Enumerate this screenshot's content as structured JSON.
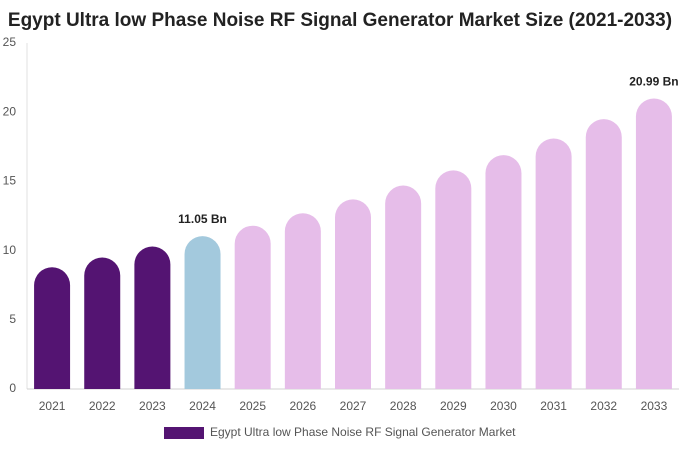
{
  "chart_data": {
    "type": "bar",
    "title": "Egypt Ultra low Phase Noise RF Signal Generator Market Size (2021-2033)",
    "categories": [
      "2021",
      "2022",
      "2023",
      "2024",
      "2025",
      "2026",
      "2027",
      "2028",
      "2029",
      "2030",
      "2031",
      "2032",
      "2033"
    ],
    "series": [
      {
        "name": "Egypt Ultra low Phase Noise RF Signal Generator Market",
        "color": "#541472",
        "values": [
          8.8,
          9.5,
          10.3,
          11.05,
          11.8,
          12.7,
          13.7,
          14.7,
          15.8,
          16.9,
          18.1,
          19.5,
          20.99
        ],
        "value_labels": [
          null,
          null,
          null,
          "11.05 Bn",
          null,
          null,
          null,
          null,
          null,
          null,
          null,
          null,
          "20.99 Bn"
        ],
        "colors": [
          "#541472",
          "#541472",
          "#541472",
          "#a3c9dd",
          "#e6bde9",
          "#e6bde9",
          "#e6bde9",
          "#e6bde9",
          "#e6bde9",
          "#e6bde9",
          "#e6bde9",
          "#e6bde9",
          "#e6bde9"
        ]
      }
    ],
    "ylim": [
      0,
      25
    ],
    "yticks": [
      0,
      5,
      10,
      15,
      20,
      25
    ],
    "grid": false
  }
}
